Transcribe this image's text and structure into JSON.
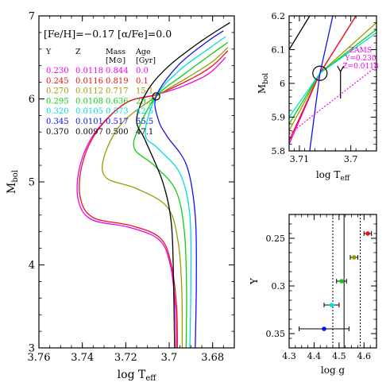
{
  "chart_data": [
    {
      "type": "line",
      "panel": "main",
      "xlabel": "log T",
      "xlabel_sub": "eff",
      "ylabel": "M",
      "ylabel_sub": "bol",
      "xlim": [
        3.76,
        3.67
      ],
      "ylim": [
        7,
        3
      ],
      "xticks": [
        "3.76",
        "3.74",
        "3.72",
        "3.7",
        "3.68"
      ],
      "xtick_values": [
        3.76,
        3.74,
        3.72,
        3.7,
        3.68
      ],
      "yticks": [
        "3",
        "4",
        "5",
        "6",
        "7"
      ],
      "ytick_values": [
        3,
        4,
        5,
        6,
        7
      ],
      "annotation": "[Fe/H]=−0.17 [α/Fe]=0.0",
      "table": {
        "headers": [
          "Y",
          "Z",
          "Mass",
          "Age"
        ],
        "subheaders": [
          "",
          "",
          "[M⊙]",
          "[Gyr]"
        ],
        "rows": [
          {
            "Y": "0.230",
            "Z": "0.0118",
            "Mass": "0.844",
            "Age": "0.0",
            "color": "#ee00ee"
          },
          {
            "Y": "0.245",
            "Z": "0.0116",
            "Mass": "0.819",
            "Age": "0.1",
            "color": "#ee1111"
          },
          {
            "Y": "0.270",
            "Z": "0.0112",
            "Mass": "0.717",
            "Age": "15.1",
            "color": "#9a9a00"
          },
          {
            "Y": "0.295",
            "Z": "0.0108",
            "Mass": "0.636",
            "Age": "29.3",
            "color": "#11cc11"
          },
          {
            "Y": "0.320",
            "Z": "0.0105",
            "Mass": "0.573",
            "Age": "42.5",
            "color": "#00dddd"
          },
          {
            "Y": "0.345",
            "Z": "0.0101",
            "Mass": "0.517",
            "Age": "55.5",
            "color": "#1111ee"
          },
          {
            "Y": "0.370",
            "Z": "0.0097",
            "Mass": "0.500",
            "Age": "47.1",
            "color": "#000000"
          }
        ]
      },
      "series": [
        {
          "color": "#ee00ee",
          "points": [
            [
              3.6968,
              3.0
            ],
            [
              3.6972,
              3.5
            ],
            [
              3.6995,
              4.0
            ],
            [
              3.7045,
              4.3
            ],
            [
              3.718,
              4.45
            ],
            [
              3.736,
              4.55
            ],
            [
              3.742,
              4.8
            ],
            [
              3.741,
              5.2
            ],
            [
              3.734,
              5.6
            ],
            [
              3.72,
              5.95
            ],
            [
              3.706,
              6.05
            ],
            [
              3.694,
              6.15
            ],
            [
              3.682,
              6.3
            ],
            [
              3.674,
              6.5
            ]
          ]
        },
        {
          "color": "#ee1111",
          "points": [
            [
              3.6962,
              3.0
            ],
            [
              3.6966,
              3.5
            ],
            [
              3.699,
              4.0
            ],
            [
              3.704,
              4.32
            ],
            [
              3.717,
              4.47
            ],
            [
              3.735,
              4.57
            ],
            [
              3.741,
              4.82
            ],
            [
              3.74,
              5.22
            ],
            [
              3.733,
              5.62
            ],
            [
              3.72,
              5.95
            ],
            [
              3.706,
              6.05
            ],
            [
              3.693,
              6.2
            ],
            [
              3.681,
              6.38
            ],
            [
              3.673,
              6.58
            ]
          ]
        },
        {
          "color": "#9a9a00",
          "points": [
            [
              3.694,
              3.0
            ],
            [
              3.6942,
              3.7
            ],
            [
              3.696,
              4.3
            ],
            [
              3.701,
              4.7
            ],
            [
              3.715,
              4.92
            ],
            [
              3.729,
              5.05
            ],
            [
              3.73,
              5.3
            ],
            [
              3.722,
              5.7
            ],
            [
              3.706,
              6.03
            ],
            [
              3.692,
              6.25
            ],
            [
              3.68,
              6.45
            ],
            [
              3.673,
              6.62
            ]
          ]
        },
        {
          "color": "#11cc11",
          "points": [
            [
              3.6922,
              3.0
            ],
            [
              3.692,
              3.7
            ],
            [
              3.693,
              4.4
            ],
            [
              3.697,
              4.9
            ],
            [
              3.707,
              5.2
            ],
            [
              3.716,
              5.4
            ],
            [
              3.714,
              5.65
            ],
            [
              3.706,
              6.03
            ],
            [
              3.693,
              6.3
            ],
            [
              3.68,
              6.55
            ],
            [
              3.673,
              6.68
            ]
          ]
        },
        {
          "color": "#00dddd",
          "points": [
            [
              3.6905,
              3.0
            ],
            [
              3.69,
              3.8
            ],
            [
              3.6905,
              4.6
            ],
            [
              3.695,
              5.1
            ],
            [
              3.705,
              5.4
            ],
            [
              3.711,
              5.58
            ],
            [
              3.706,
              6.03
            ],
            [
              3.695,
              6.35
            ],
            [
              3.681,
              6.62
            ],
            [
              3.674,
              6.75
            ]
          ]
        },
        {
          "color": "#1111ee",
          "points": [
            [
              3.688,
              3.0
            ],
            [
              3.6875,
              3.8
            ],
            [
              3.688,
              4.6
            ],
            [
              3.692,
              5.2
            ],
            [
              3.701,
              5.55
            ],
            [
              3.705,
              5.75
            ],
            [
              3.706,
              6.03
            ],
            [
              3.696,
              6.4
            ],
            [
              3.683,
              6.68
            ],
            [
              3.675,
              6.82
            ]
          ]
        },
        {
          "color": "#000000",
          "points": [
            [
              3.6975,
              3.0
            ],
            [
              3.698,
              3.8
            ],
            [
              3.699,
              4.5
            ],
            [
              3.703,
              5.0
            ],
            [
              3.711,
              5.5
            ],
            [
              3.715,
              5.75
            ],
            [
              3.71,
              6.1
            ],
            [
              3.7,
              6.4
            ],
            [
              3.685,
              6.7
            ],
            [
              3.672,
              6.92
            ]
          ]
        }
      ],
      "circle": {
        "x": 3.706,
        "y": 6.03
      }
    },
    {
      "type": "line",
      "panel": "zoom",
      "xlabel": "log T",
      "xlabel_sub": "eff",
      "ylabel": "M",
      "ylabel_sub": "bol",
      "xlim": [
        3.712,
        3.695
      ],
      "ylim": [
        6.2,
        5.8
      ],
      "xticks": [
        "3.71",
        "3.7"
      ],
      "xtick_values": [
        3.71,
        3.7
      ],
      "yticks": [
        "5.8",
        "5.9",
        "6",
        "6.1",
        "6.2"
      ],
      "ytick_values": [
        5.8,
        5.9,
        6.0,
        6.1,
        6.2
      ],
      "zams_label": [
        "ZAMS",
        "Y=0.230",
        "Z=0.0118"
      ],
      "zams": {
        "color": "#ee00ee",
        "points": [
          [
            3.712,
            5.85
          ],
          [
            3.695,
            6.05
          ]
        ]
      },
      "arrow": {
        "from": [
          3.702,
          5.955
        ],
        "to": [
          3.702,
          6.035
        ]
      },
      "circle": {
        "x": 3.706,
        "y": 6.03
      },
      "series": [
        {
          "color": "#ee00ee",
          "points": [
            [
              3.712,
              5.82
            ],
            [
              3.706,
              6.03
            ],
            [
              3.699,
              6.2
            ]
          ]
        },
        {
          "color": "#ee1111",
          "points": [
            [
              3.712,
              5.83
            ],
            [
              3.706,
              6.03
            ],
            [
              3.699,
              6.2
            ]
          ]
        },
        {
          "color": "#9a9a00",
          "points": [
            [
              3.712,
              5.86
            ],
            [
              3.706,
              6.03
            ],
            [
              3.695,
              6.18
            ]
          ]
        },
        {
          "color": "#11cc11",
          "points": [
            [
              3.712,
              5.88
            ],
            [
              3.706,
              6.03
            ],
            [
              3.695,
              6.16
            ]
          ]
        },
        {
          "color": "#00dddd",
          "points": [
            [
              3.712,
              5.9
            ],
            [
              3.706,
              6.03
            ],
            [
              3.695,
              6.15
            ]
          ]
        },
        {
          "color": "#1111ee",
          "points": [
            [
              3.708,
              5.8
            ],
            [
              3.706,
              6.03
            ],
            [
              3.7035,
              6.2
            ]
          ]
        },
        {
          "color": "#000000",
          "points": [
            [
              3.712,
              6.1
            ],
            [
              3.708,
              6.2
            ]
          ]
        }
      ]
    },
    {
      "type": "scatter",
      "panel": "logg",
      "xlabel": "log g",
      "ylabel": "Y",
      "xlim": [
        4.3,
        4.65
      ],
      "ylim": [
        0.225,
        0.365
      ],
      "xticks": [
        "4.3",
        "4.4",
        "4.5",
        "4.6"
      ],
      "xtick_values": [
        4.3,
        4.4,
        4.5,
        4.6
      ],
      "yticks": [
        "0.25",
        "0.3",
        "0.35"
      ],
      "ytick_values": [
        0.25,
        0.3,
        0.35
      ],
      "vlines": [
        {
          "x": 4.52,
          "style": "solid"
        },
        {
          "x": 4.475,
          "style": "dotted"
        },
        {
          "x": 4.585,
          "style": "dotted"
        }
      ],
      "points": [
        {
          "x": 4.44,
          "y": 0.345,
          "xerr": 0.1,
          "color": "#1111ee"
        },
        {
          "x": 4.47,
          "y": 0.32,
          "xerr": 0.03,
          "color": "#00dddd"
        },
        {
          "x": 4.51,
          "y": 0.295,
          "xerr": 0.02,
          "color": "#11cc11"
        },
        {
          "x": 4.56,
          "y": 0.27,
          "xerr": 0.015,
          "color": "#9a9a00"
        },
        {
          "x": 4.615,
          "y": 0.245,
          "xerr": 0.015,
          "color": "#ee1111"
        }
      ]
    }
  ]
}
